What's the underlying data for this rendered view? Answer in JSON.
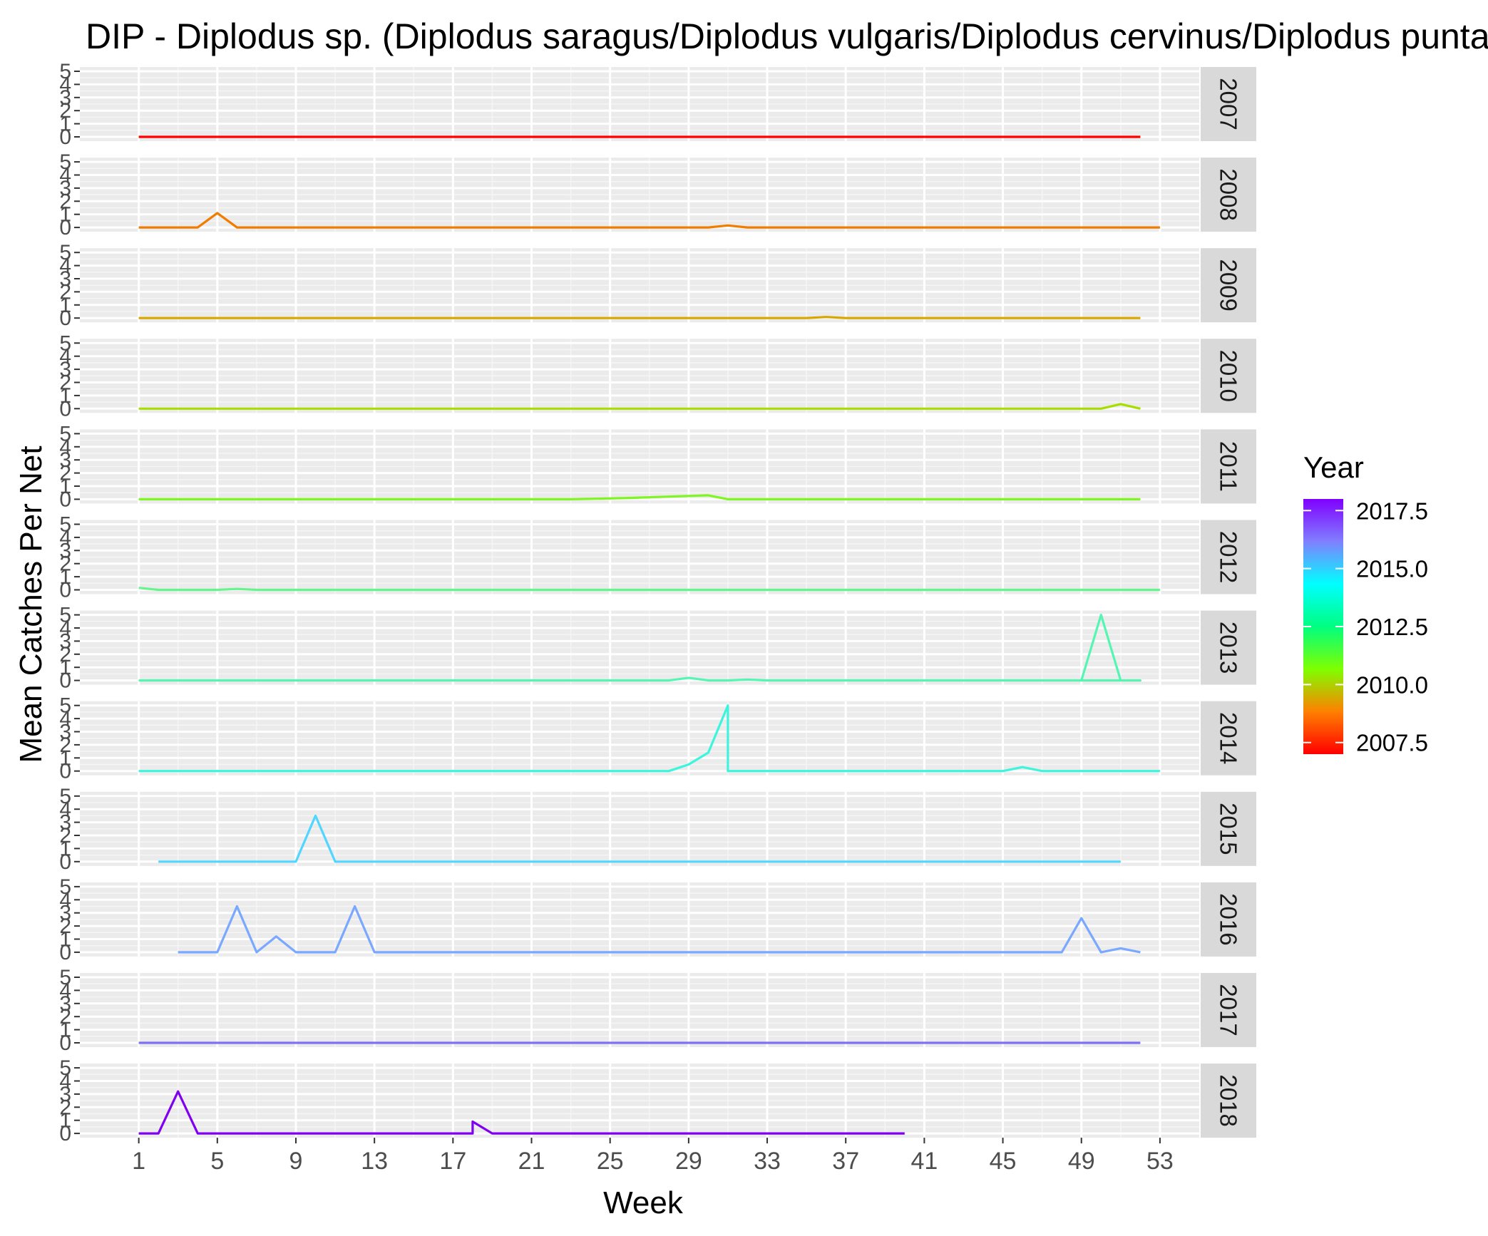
{
  "chart_data": {
    "type": "line",
    "title": "DIP - Diplodus sp. (Diplodus saragus/Diplodus vulgaris/Diplodus cervinus/Diplodus puntazzo)",
    "xlabel": "Week",
    "ylabel": "Mean Catches Per Net",
    "x_ticks": [
      1,
      5,
      9,
      13,
      17,
      21,
      25,
      29,
      33,
      37,
      41,
      45,
      49,
      53
    ],
    "xlim": [
      -2,
      55
    ],
    "y_ticks": [
      0,
      1,
      2,
      3,
      4,
      5
    ],
    "ylim": [
      0,
      5
    ],
    "facet_var": "Year",
    "legend": {
      "title": "Year",
      "position": "right",
      "labels": [
        "2017.5",
        "2015.0",
        "2012.5",
        "2010.0",
        "2007.5"
      ],
      "label_values": [
        2017.5,
        2015.0,
        2012.5,
        2010.0,
        2007.5
      ],
      "range": [
        2007,
        2018
      ],
      "gradient_colors": [
        "#ff0000",
        "#ff8000",
        "#7fff00",
        "#00ff80",
        "#00ffff",
        "#8080ff",
        "#8000ff"
      ]
    },
    "series": [
      {
        "name": "2007",
        "color": "#ff0000",
        "points": [
          [
            1,
            0
          ],
          [
            52,
            0
          ]
        ]
      },
      {
        "name": "2008",
        "color": "#f07d00",
        "points": [
          [
            1,
            0
          ],
          [
            4,
            0
          ],
          [
            5,
            1.1
          ],
          [
            6,
            0
          ],
          [
            30,
            0
          ],
          [
            31,
            0.15
          ],
          [
            32,
            0
          ],
          [
            53,
            0
          ]
        ]
      },
      {
        "name": "2009",
        "color": "#d9a600",
        "points": [
          [
            1,
            0
          ],
          [
            35,
            0
          ],
          [
            36,
            0.08
          ],
          [
            37,
            0
          ],
          [
            52,
            0
          ]
        ]
      },
      {
        "name": "2010",
        "color": "#a6de00",
        "points": [
          [
            1,
            0
          ],
          [
            50,
            0
          ],
          [
            51,
            0.35
          ],
          [
            52,
            0
          ]
        ]
      },
      {
        "name": "2011",
        "color": "#7ff522",
        "points": [
          [
            1,
            0
          ],
          [
            23,
            0
          ],
          [
            26,
            0.1
          ],
          [
            28,
            0.2
          ],
          [
            30,
            0.3
          ],
          [
            31,
            0
          ],
          [
            52,
            0
          ]
        ]
      },
      {
        "name": "2012",
        "color": "#66f58c",
        "points": [
          [
            1,
            0.15
          ],
          [
            2,
            0
          ],
          [
            5,
            0
          ],
          [
            6,
            0.07
          ],
          [
            7,
            0
          ],
          [
            53,
            0
          ]
        ]
      },
      {
        "name": "2013",
        "color": "#55f5b2",
        "points": [
          [
            1,
            0
          ],
          [
            28,
            0
          ],
          [
            29,
            0.2
          ],
          [
            30,
            0
          ],
          [
            31,
            0
          ],
          [
            32,
            0.07
          ],
          [
            33,
            0
          ],
          [
            52,
            0
          ],
          [
            49,
            0
          ],
          [
            50,
            5
          ],
          [
            51,
            0
          ],
          [
            52,
            0
          ]
        ]
      },
      {
        "name": "2014",
        "color": "#3cf5dc",
        "points": [
          [
            1,
            0
          ],
          [
            28,
            0
          ],
          [
            29,
            0.5
          ],
          [
            30,
            1.4
          ],
          [
            31,
            5
          ],
          [
            31,
            0
          ],
          [
            45,
            0
          ],
          [
            46,
            0.3
          ],
          [
            47,
            0
          ],
          [
            53,
            0
          ]
        ]
      },
      {
        "name": "2015",
        "color": "#50d6ff",
        "points": [
          [
            2,
            0
          ],
          [
            9,
            0
          ],
          [
            10,
            3.5
          ],
          [
            11,
            0
          ],
          [
            51,
            0
          ]
        ]
      },
      {
        "name": "2016",
        "color": "#7aa8ff",
        "points": [
          [
            3,
            0
          ],
          [
            5,
            0
          ],
          [
            6,
            3.5
          ],
          [
            7,
            0
          ],
          [
            8,
            1.2
          ],
          [
            9,
            0
          ],
          [
            11,
            0
          ],
          [
            12,
            3.5
          ],
          [
            13,
            0
          ],
          [
            48,
            0
          ],
          [
            49,
            2.6
          ],
          [
            50,
            0
          ],
          [
            51,
            0.3
          ],
          [
            52,
            0
          ]
        ]
      },
      {
        "name": "2017",
        "color": "#8070f5",
        "points": [
          [
            1,
            0
          ],
          [
            52,
            0
          ]
        ]
      },
      {
        "name": "2018",
        "color": "#8000f0",
        "points": [
          [
            1,
            0
          ],
          [
            2,
            0
          ],
          [
            3,
            3.2
          ],
          [
            4,
            0
          ],
          [
            18,
            0
          ],
          [
            18,
            0.9
          ],
          [
            19,
            0
          ],
          [
            40,
            0
          ]
        ]
      }
    ]
  }
}
